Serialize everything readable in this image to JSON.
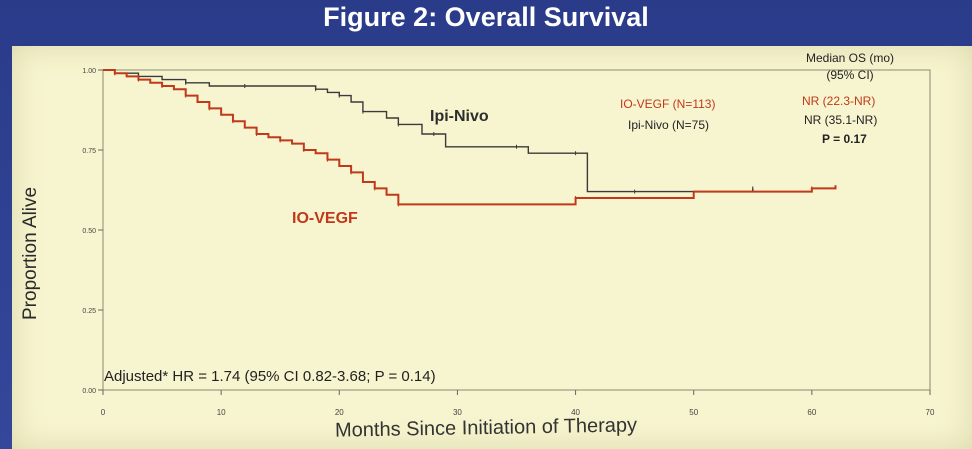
{
  "figure": {
    "title": "Figure 2: Overall Survival"
  },
  "chart_data": {
    "type": "line",
    "xlabel": "Months Since Initiation of Therapy",
    "ylabel": "Proportion Alive",
    "xlim": [
      0,
      70
    ],
    "ylim": [
      0,
      1
    ],
    "x_ticks": [
      "0",
      "10",
      "20",
      "30",
      "40",
      "50",
      "60",
      "70"
    ],
    "y_ticks": [
      "0.00",
      "0.25",
      "0.50",
      "0.75",
      "1.00"
    ],
    "series": [
      {
        "name": "Ipi-Nivo",
        "color": "#3a3a3a",
        "points": [
          [
            0,
            1.0
          ],
          [
            1,
            0.99
          ],
          [
            2,
            0.99
          ],
          [
            3,
            0.98
          ],
          [
            5,
            0.97
          ],
          [
            7,
            0.96
          ],
          [
            9,
            0.95
          ],
          [
            12,
            0.95
          ],
          [
            15,
            0.95
          ],
          [
            18,
            0.94
          ],
          [
            19,
            0.93
          ],
          [
            20,
            0.92
          ],
          [
            21,
            0.9
          ],
          [
            22,
            0.87
          ],
          [
            24,
            0.85
          ],
          [
            25,
            0.83
          ],
          [
            27,
            0.8
          ],
          [
            28,
            0.8
          ],
          [
            29,
            0.76
          ],
          [
            35,
            0.76
          ],
          [
            36,
            0.74
          ],
          [
            40,
            0.74
          ],
          [
            41,
            0.62
          ],
          [
            45,
            0.62
          ],
          [
            50,
            0.62
          ],
          [
            55,
            0.63
          ]
        ]
      },
      {
        "name": "IO-VEGF",
        "color": "#c0391a",
        "points": [
          [
            0,
            1.0
          ],
          [
            1,
            0.99
          ],
          [
            2,
            0.98
          ],
          [
            3,
            0.97
          ],
          [
            4,
            0.96
          ],
          [
            5,
            0.95
          ],
          [
            6,
            0.94
          ],
          [
            7,
            0.92
          ],
          [
            8,
            0.9
          ],
          [
            9,
            0.88
          ],
          [
            10,
            0.86
          ],
          [
            11,
            0.84
          ],
          [
            12,
            0.82
          ],
          [
            13,
            0.8
          ],
          [
            14,
            0.79
          ],
          [
            15,
            0.78
          ],
          [
            16,
            0.77
          ],
          [
            17,
            0.75
          ],
          [
            18,
            0.74
          ],
          [
            19,
            0.72
          ],
          [
            20,
            0.7
          ],
          [
            21,
            0.68
          ],
          [
            22,
            0.65
          ],
          [
            23,
            0.63
          ],
          [
            24,
            0.61
          ],
          [
            25,
            0.58
          ],
          [
            30,
            0.58
          ],
          [
            40,
            0.6
          ],
          [
            50,
            0.62
          ],
          [
            60,
            0.63
          ],
          [
            62,
            0.64
          ]
        ]
      }
    ],
    "series_labels": {
      "ipi_nivo": "Ipi-Nivo",
      "io_vegf": "IO-VEGF"
    },
    "legend": {
      "header_line1": "Median OS (mo)",
      "header_line2": "(95% CI)",
      "io_vegf_label": "IO-VEGF (N=113)",
      "io_vegf_value": "NR (22.3-NR)",
      "ipi_nivo_label": "Ipi-Nivo (N=75)",
      "ipi_nivo_value": "NR (35.1-NR)",
      "p_value": "P = 0.17",
      "placement": "top-right"
    },
    "annotation": "Adjusted* HR = 1.74 (95% CI 0.82-3.68; P = 0.14)"
  }
}
